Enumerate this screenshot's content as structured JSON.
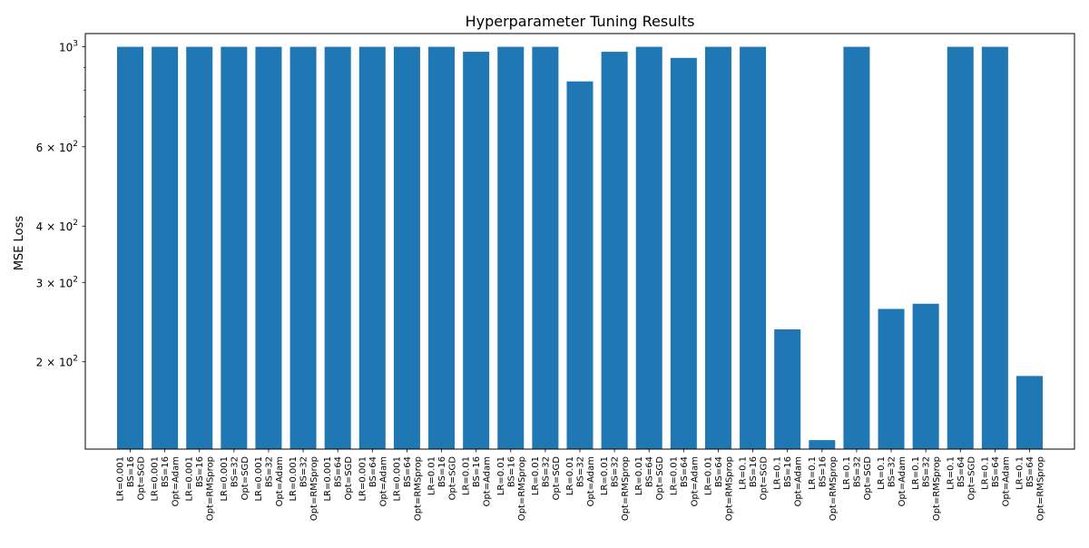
{
  "chart_data": {
    "type": "bar",
    "title": "Hyperparameter Tuning Results",
    "xlabel": "",
    "ylabel": "MSE Loss",
    "y_scale": "log",
    "ylim": [
      128,
      1070
    ],
    "grid": false,
    "legend": "none",
    "bar_color": "#1f77b4",
    "y_ticks": [
      {
        "value": 1000,
        "base": "10",
        "exp": "3"
      },
      {
        "value": 600,
        "base": "6 × 10",
        "exp": "2"
      },
      {
        "value": 400,
        "base": "4 × 10",
        "exp": "2"
      },
      {
        "value": 300,
        "base": "3 × 10",
        "exp": "2"
      },
      {
        "value": 200,
        "base": "2 × 10",
        "exp": "2"
      }
    ],
    "y_minor_ticks": [
      700,
      800,
      900
    ],
    "categories": [
      [
        "LR=0.001",
        "BS=16",
        "Opt=SGD"
      ],
      [
        "LR=0.001",
        "BS=16",
        "Opt=Adam"
      ],
      [
        "LR=0.001",
        "BS=16",
        "Opt=RMSprop"
      ],
      [
        "LR=0.001",
        "BS=32",
        "Opt=SGD"
      ],
      [
        "LR=0.001",
        "BS=32",
        "Opt=Adam"
      ],
      [
        "LR=0.001",
        "BS=32",
        "Opt=RMSprop"
      ],
      [
        "LR=0.001",
        "BS=64",
        "Opt=SGD"
      ],
      [
        "LR=0.001",
        "BS=64",
        "Opt=Adam"
      ],
      [
        "LR=0.001",
        "BS=64",
        "Opt=RMSprop"
      ],
      [
        "LR=0.01",
        "BS=16",
        "Opt=SGD"
      ],
      [
        "LR=0.01",
        "BS=16",
        "Opt=Adam"
      ],
      [
        "LR=0.01",
        "BS=16",
        "Opt=RMSprop"
      ],
      [
        "LR=0.01",
        "BS=32",
        "Opt=SGD"
      ],
      [
        "LR=0.01",
        "BS=32",
        "Opt=Adam"
      ],
      [
        "LR=0.01",
        "BS=32",
        "Opt=RMSprop"
      ],
      [
        "LR=0.01",
        "BS=64",
        "Opt=SGD"
      ],
      [
        "LR=0.01",
        "BS=64",
        "Opt=Adam"
      ],
      [
        "LR=0.01",
        "BS=64",
        "Opt=RMSprop"
      ],
      [
        "LR=0.1",
        "BS=16",
        "Opt=SGD"
      ],
      [
        "LR=0.1",
        "BS=16",
        "Opt=Adam"
      ],
      [
        "LR=0.1",
        "BS=16",
        "Opt=RMSprop"
      ],
      [
        "LR=0.1",
        "BS=32",
        "Opt=SGD"
      ],
      [
        "LR=0.1",
        "BS=32",
        "Opt=Adam"
      ],
      [
        "LR=0.1",
        "BS=32",
        "Opt=RMSprop"
      ],
      [
        "LR=0.1",
        "BS=64",
        "Opt=SGD"
      ],
      [
        "LR=0.1",
        "BS=64",
        "Opt=Adam"
      ],
      [
        "LR=0.1",
        "BS=64",
        "Opt=RMSprop"
      ]
    ],
    "values": [
      1000,
      1000,
      1000,
      1000,
      1000,
      1000,
      1000,
      1000,
      1000,
      1000,
      975,
      1000,
      1000,
      838,
      975,
      1000,
      945,
      1000,
      1000,
      236,
      134,
      1000,
      262,
      269,
      1000,
      1000,
      186
    ]
  }
}
